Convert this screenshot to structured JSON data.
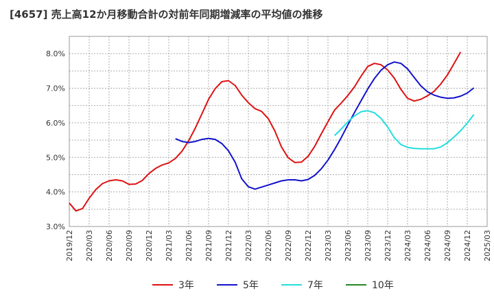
{
  "chart_data": {
    "type": "line",
    "title": "[4657]  売上高12か月移動合計の対前年同期増減率の平均値の推移",
    "xlabel": "",
    "ylabel": "",
    "x_ticks": [
      "2019/12",
      "2020/03",
      "2020/06",
      "2020/09",
      "2020/12",
      "2021/03",
      "2021/06",
      "2021/09",
      "2021/12",
      "2022/03",
      "2022/06",
      "2022/09",
      "2022/12",
      "2023/03",
      "2023/06",
      "2023/09",
      "2023/12",
      "2024/03",
      "2024/06",
      "2024/09",
      "2024/12",
      "2025/03"
    ],
    "y_ticks": [
      "3.0%",
      "4.0%",
      "5.0%",
      "6.0%",
      "7.0%",
      "8.0%"
    ],
    "ylim": [
      3.0,
      8.5
    ],
    "grid": true,
    "legend_position": "bottom",
    "series": [
      {
        "name": "3年",
        "color": "#dd1111",
        "start_index": 0,
        "values": [
          3.68,
          3.45,
          3.52,
          3.82,
          4.07,
          4.24,
          4.32,
          4.35,
          4.32,
          4.22,
          4.23,
          4.33,
          4.53,
          4.68,
          4.78,
          4.84,
          4.97,
          5.18,
          5.48,
          5.85,
          6.26,
          6.68,
          6.99,
          7.19,
          7.22,
          7.08,
          6.8,
          6.58,
          6.41,
          6.33,
          6.12,
          5.76,
          5.3,
          4.99,
          4.85,
          4.86,
          5.03,
          5.32,
          5.68,
          6.03,
          6.37,
          6.57,
          6.79,
          7.04,
          7.35,
          7.63,
          7.72,
          7.68,
          7.53,
          7.29,
          6.97,
          6.71,
          6.63,
          6.68,
          6.78,
          6.91,
          7.12,
          7.38,
          7.71,
          8.05
        ]
      },
      {
        "name": "5年",
        "color": "#1111cc",
        "start_index": 16,
        "values": [
          5.54,
          5.46,
          5.43,
          5.46,
          5.52,
          5.55,
          5.52,
          5.4,
          5.19,
          4.86,
          4.38,
          4.15,
          4.08,
          4.14,
          4.2,
          4.26,
          4.32,
          4.35,
          4.35,
          4.32,
          4.36,
          4.48,
          4.67,
          4.92,
          5.23,
          5.57,
          5.94,
          6.3,
          6.64,
          6.98,
          7.28,
          7.52,
          7.68,
          7.76,
          7.72,
          7.56,
          7.31,
          7.07,
          6.9,
          6.8,
          6.74,
          6.71,
          6.72,
          6.77,
          6.86,
          7.01
        ]
      },
      {
        "name": "7年",
        "color": "#22dddd",
        "start_index": 40,
        "values": [
          5.63,
          5.82,
          6.03,
          6.2,
          6.32,
          6.35,
          6.29,
          6.13,
          5.88,
          5.57,
          5.37,
          5.29,
          5.26,
          5.25,
          5.25,
          5.25,
          5.3,
          5.42,
          5.59,
          5.77,
          5.99,
          6.24
        ]
      },
      {
        "name": "10年",
        "color": "#228822",
        "start_index": 0,
        "values": []
      }
    ]
  }
}
